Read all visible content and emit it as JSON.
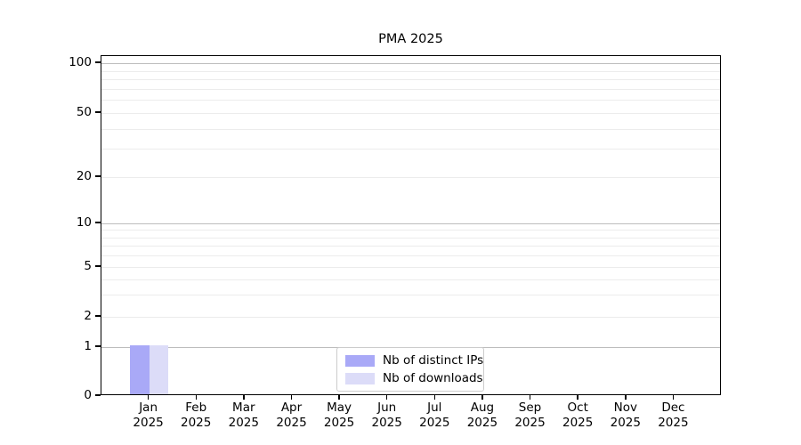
{
  "chart_data": {
    "type": "bar",
    "title": "PMA 2025",
    "categories": [
      "Jan",
      "Feb",
      "Mar",
      "Apr",
      "May",
      "Jun",
      "Jul",
      "Aug",
      "Sep",
      "Oct",
      "Nov",
      "Dec"
    ],
    "category_year": "2025",
    "series": [
      {
        "name": "Nb of distinct IPs",
        "color": "#a9a9f7",
        "values": [
          1,
          0,
          0,
          0,
          0,
          0,
          0,
          0,
          0,
          0,
          0,
          0
        ]
      },
      {
        "name": "Nb of downloads",
        "color": "#dcdcf8",
        "values": [
          1,
          0,
          0,
          0,
          0,
          0,
          0,
          0,
          0,
          0,
          0,
          0
        ]
      }
    ],
    "y_axis": {
      "scale": "log-like (linear 0 to 1, logarithmic above)",
      "tick_values": [
        0,
        1,
        2,
        5,
        10,
        20,
        50,
        100
      ],
      "tick_labels": [
        "0",
        "1",
        "2",
        "5",
        "10",
        "20",
        "50",
        "100"
      ],
      "range": [
        0,
        110
      ],
      "minor_grid_values": [
        2,
        3,
        4,
        5,
        6,
        7,
        8,
        9,
        20,
        30,
        40,
        50,
        60,
        70,
        80,
        90
      ],
      "major_grid_values": [
        1,
        10,
        100
      ]
    },
    "x_axis": {
      "label_format": "month over year, two lines"
    },
    "grid": {
      "horizontal": true,
      "vertical": false,
      "minor": true
    },
    "legend": {
      "position": "lower center inside plot",
      "entries": [
        "Nb of distinct IPs",
        "Nb of downloads"
      ]
    }
  }
}
